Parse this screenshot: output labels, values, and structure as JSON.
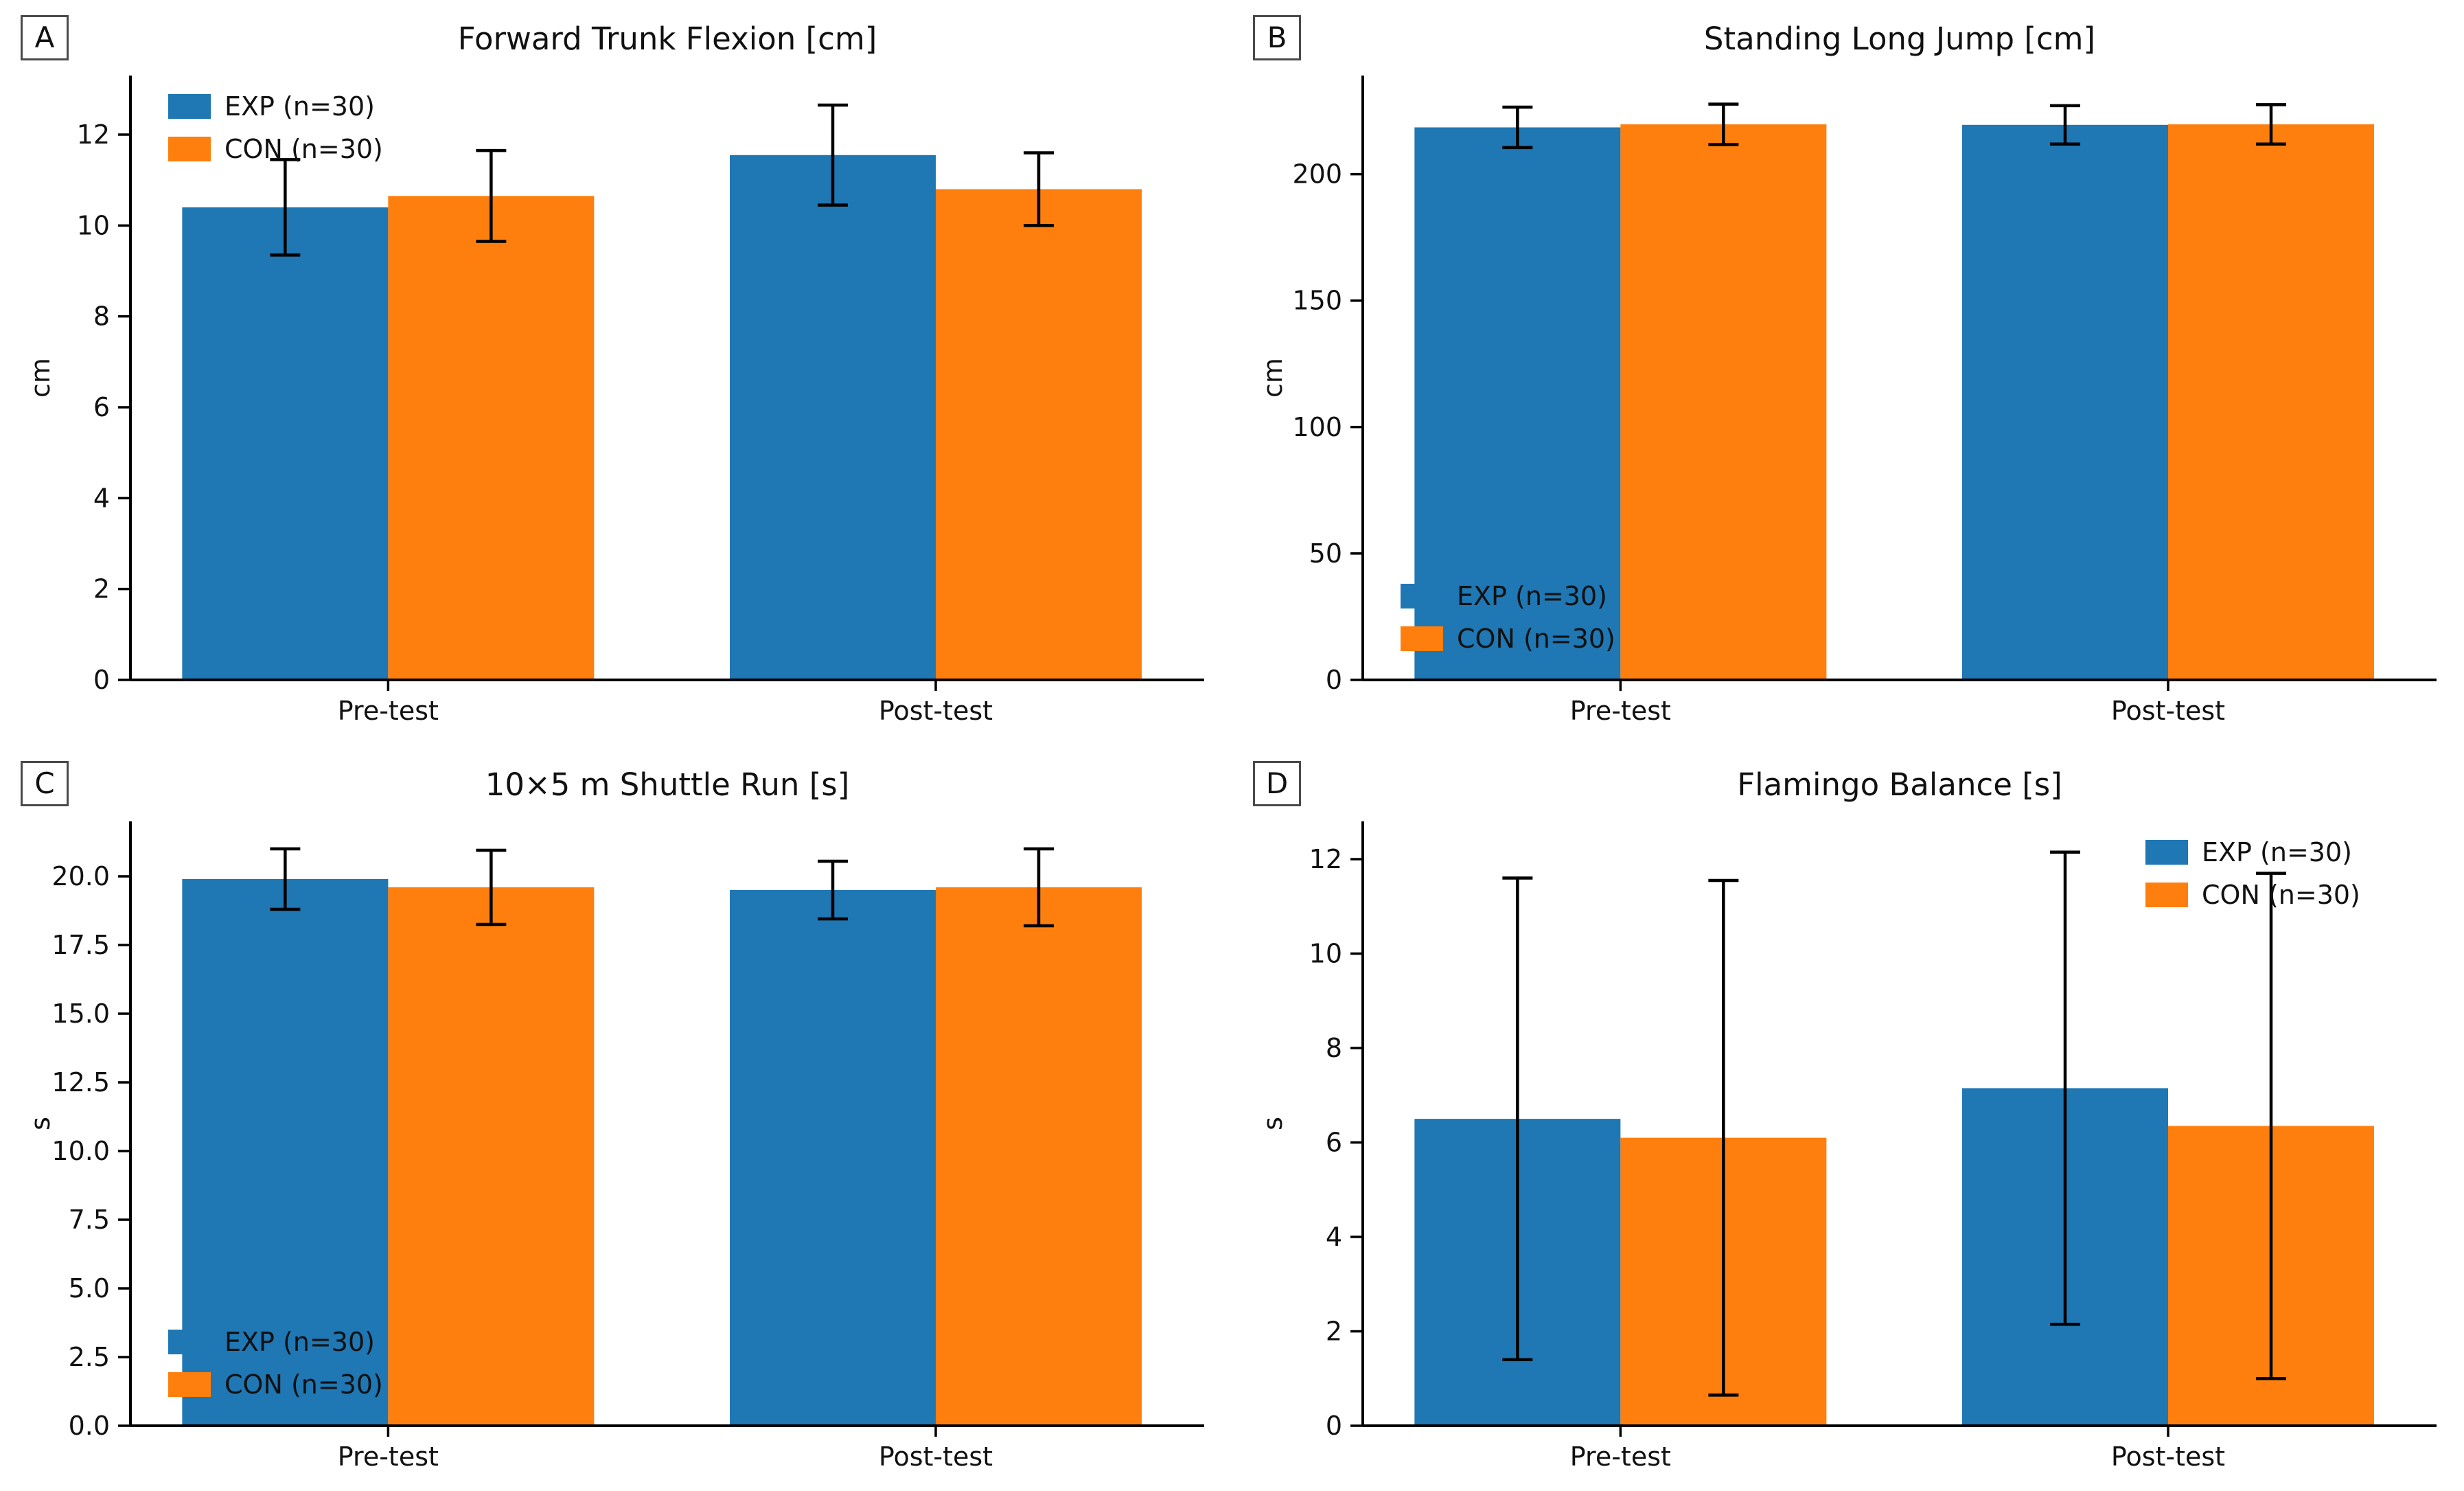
{
  "figure": {
    "background": "#ffffff",
    "text_color": "#111111"
  },
  "colors": {
    "exp": "#1f77b4",
    "con": "#ff7f0e",
    "error_bar": "#000000",
    "axis": "#000000"
  },
  "chart_data": [
    {
      "type": "bar",
      "panel_label": "A",
      "title": "Forward Trunk Flexion [cm]",
      "ylabel": "cm",
      "categories": [
        "Pre-test",
        "Post-test"
      ],
      "ylim": [
        0,
        13.3
      ],
      "ytick_values": [
        0,
        2,
        4,
        6,
        8,
        10,
        12
      ],
      "ytick_labels": [
        "0",
        "2",
        "4",
        "6",
        "8",
        "10",
        "12"
      ],
      "grid": false,
      "legend_position": "upper-left",
      "series": [
        {
          "key": "exp",
          "name": "EXP (n=30)",
          "color_key": "exp",
          "values": [
            10.4,
            11.55
          ],
          "errors": [
            1.05,
            1.1
          ]
        },
        {
          "key": "con",
          "name": "CON (n=30)",
          "color_key": "con",
          "values": [
            10.65,
            10.8
          ],
          "errors": [
            1.0,
            0.8
          ]
        }
      ]
    },
    {
      "type": "bar",
      "panel_label": "B",
      "title": "Standing Long Jump [cm]",
      "ylabel": "cm",
      "categories": [
        "Pre-test",
        "Post-test"
      ],
      "ylim": [
        0,
        239
      ],
      "ytick_values": [
        0,
        50,
        100,
        150,
        200
      ],
      "ytick_labels": [
        "0",
        "50",
        "100",
        "150",
        "200"
      ],
      "grid": false,
      "legend_position": "lower-left",
      "series": [
        {
          "key": "exp",
          "name": "EXP (n=30)",
          "color_key": "exp",
          "values": [
            218.5,
            219.5
          ],
          "errors": [
            8.0,
            7.6
          ]
        },
        {
          "key": "con",
          "name": "CON (n=30)",
          "color_key": "con",
          "values": [
            219.7,
            219.7
          ],
          "errors": [
            8.0,
            7.8
          ]
        }
      ]
    },
    {
      "type": "bar",
      "panel_label": "C",
      "title": "10×5 m Shuttle Run [s]",
      "ylabel": "s",
      "categories": [
        "Pre-test",
        "Post-test"
      ],
      "ylim": [
        0,
        22
      ],
      "ytick_values": [
        0,
        2.5,
        5,
        7.5,
        10,
        12.5,
        15,
        17.5,
        20
      ],
      "ytick_labels": [
        "0.0",
        "2.5",
        "5.0",
        "7.5",
        "10.0",
        "12.5",
        "15.0",
        "17.5",
        "20.0"
      ],
      "grid": false,
      "legend_position": "lower-left",
      "series": [
        {
          "key": "exp",
          "name": "EXP (n=30)",
          "color_key": "exp",
          "values": [
            19.9,
            19.5
          ],
          "errors": [
            1.1,
            1.05
          ]
        },
        {
          "key": "con",
          "name": "CON (n=30)",
          "color_key": "con",
          "values": [
            19.6,
            19.6
          ],
          "errors": [
            1.35,
            1.4
          ]
        }
      ]
    },
    {
      "type": "bar",
      "panel_label": "D",
      "title": "Flamingo Balance [s]",
      "ylabel": "s",
      "categories": [
        "Pre-test",
        "Post-test"
      ],
      "ylim": [
        0,
        12.8
      ],
      "ytick_values": [
        0,
        2,
        4,
        6,
        8,
        10,
        12
      ],
      "ytick_labels": [
        "0",
        "2",
        "4",
        "6",
        "8",
        "10",
        "12"
      ],
      "grid": false,
      "legend_position": "upper-right",
      "series": [
        {
          "key": "exp",
          "name": "EXP (n=30)",
          "color_key": "exp",
          "values": [
            6.5,
            7.15
          ],
          "errors": [
            5.1,
            5.0
          ]
        },
        {
          "key": "con",
          "name": "CON (n=30)",
          "color_key": "con",
          "values": [
            6.1,
            6.35
          ],
          "errors": [
            5.45,
            5.35
          ]
        }
      ]
    }
  ]
}
